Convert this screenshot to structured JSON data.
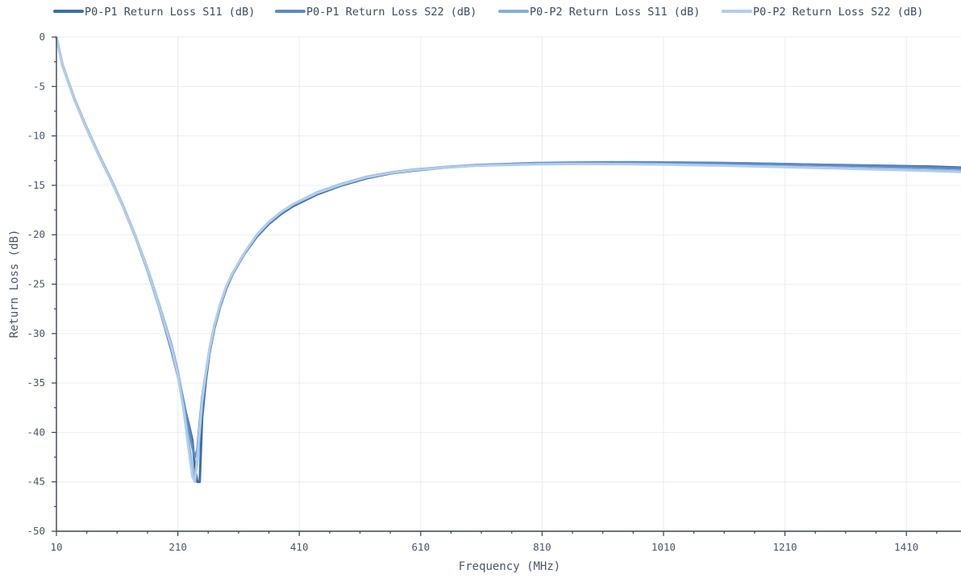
{
  "chart_data": {
    "type": "line",
    "title": "",
    "xlabel": "Frequency (MHz)",
    "ylabel": "Return Loss (dB)",
    "xlim": [
      10,
      1500
    ],
    "ylim": [
      -50,
      0
    ],
    "x_ticks": [
      10,
      210,
      410,
      610,
      810,
      1010,
      1210,
      1410
    ],
    "y_ticks": [
      0,
      -5,
      -10,
      -15,
      -20,
      -25,
      -30,
      -35,
      -40,
      -45,
      -50
    ],
    "grid": true,
    "legend_position": "top",
    "x": [
      10,
      20,
      40,
      60,
      80,
      100,
      120,
      140,
      160,
      180,
      200,
      210,
      220,
      228,
      234,
      238,
      242,
      246,
      250,
      256,
      262,
      270,
      280,
      290,
      300,
      320,
      340,
      360,
      380,
      400,
      440,
      480,
      520,
      560,
      600,
      650,
      700,
      750,
      800,
      850,
      900,
      950,
      1000,
      1050,
      1100,
      1150,
      1200,
      1250,
      1300,
      1350,
      1400,
      1450,
      1500
    ],
    "series": [
      {
        "name": "P0-P1 Return Loss S11 (dB)",
        "color": "#3c6ea8",
        "values": [
          0,
          -2.9,
          -6.4,
          -9.3,
          -12.0,
          -14.5,
          -17.2,
          -20.2,
          -23.6,
          -27.5,
          -31.8,
          -34.3,
          -37.2,
          -39.2,
          -40.8,
          -43.5,
          -45.0,
          -45.0,
          -38.5,
          -34.8,
          -32.0,
          -29.5,
          -27.2,
          -25.4,
          -24.0,
          -21.9,
          -20.2,
          -18.9,
          -17.9,
          -17.1,
          -15.9,
          -15.0,
          -14.3,
          -13.8,
          -13.5,
          -13.2,
          -13.0,
          -12.9,
          -12.8,
          -12.75,
          -12.7,
          -12.7,
          -12.7,
          -12.72,
          -12.75,
          -12.8,
          -12.85,
          -12.9,
          -12.95,
          -13.0,
          -13.05,
          -13.1,
          -13.2
        ]
      },
      {
        "name": "P0-P1 Return Loss S22 (dB)",
        "color": "#5a8ac4",
        "values": [
          0,
          -2.8,
          -6.3,
          -9.2,
          -11.9,
          -14.4,
          -17.1,
          -20.1,
          -23.5,
          -27.4,
          -31.6,
          -34.0,
          -37.0,
          -39.5,
          -41.5,
          -42.5,
          -41.8,
          -39.0,
          -36.5,
          -34.0,
          -31.6,
          -29.2,
          -27.0,
          -25.2,
          -23.9,
          -21.8,
          -20.1,
          -18.8,
          -17.8,
          -17.0,
          -15.8,
          -14.9,
          -14.2,
          -13.75,
          -13.45,
          -13.15,
          -12.95,
          -12.85,
          -12.75,
          -12.7,
          -12.68,
          -12.66,
          -12.68,
          -12.7,
          -12.73,
          -12.78,
          -12.84,
          -12.9,
          -12.98,
          -13.05,
          -13.12,
          -13.2,
          -13.3
        ]
      },
      {
        "name": "P0-P2 Return Loss S11 (dB)",
        "color": "#86aede",
        "values": [
          0,
          -2.85,
          -6.35,
          -9.25,
          -11.95,
          -14.45,
          -17.15,
          -20.1,
          -23.4,
          -27.2,
          -31.2,
          -33.8,
          -37.5,
          -41.0,
          -43.8,
          -44.8,
          -43.0,
          -40.0,
          -37.0,
          -34.2,
          -31.8,
          -29.3,
          -27.0,
          -25.2,
          -23.9,
          -21.8,
          -20.0,
          -18.7,
          -17.7,
          -16.9,
          -15.7,
          -14.85,
          -14.15,
          -13.7,
          -13.4,
          -13.15,
          -12.98,
          -12.9,
          -12.82,
          -12.8,
          -12.8,
          -12.82,
          -12.85,
          -12.9,
          -12.95,
          -13.02,
          -13.08,
          -13.15,
          -13.22,
          -13.3,
          -13.38,
          -13.45,
          -13.55
        ]
      },
      {
        "name": "P0-P2 Return Loss S22 (dB)",
        "color": "#b3cdeb",
        "values": [
          0,
          -2.9,
          -6.4,
          -9.3,
          -12.0,
          -14.5,
          -17.2,
          -20.15,
          -23.5,
          -27.4,
          -31.5,
          -34.2,
          -38.0,
          -41.8,
          -44.5,
          -45.0,
          -42.5,
          -39.5,
          -36.8,
          -34.0,
          -31.6,
          -29.2,
          -27.0,
          -25.2,
          -23.9,
          -21.8,
          -20.0,
          -18.7,
          -17.7,
          -16.9,
          -15.75,
          -14.9,
          -14.2,
          -13.75,
          -13.45,
          -13.2,
          -13.02,
          -12.95,
          -12.88,
          -12.85,
          -12.85,
          -12.87,
          -12.9,
          -12.95,
          -13.0,
          -13.07,
          -13.14,
          -13.22,
          -13.3,
          -13.38,
          -13.46,
          -13.55,
          -13.65
        ]
      }
    ]
  }
}
